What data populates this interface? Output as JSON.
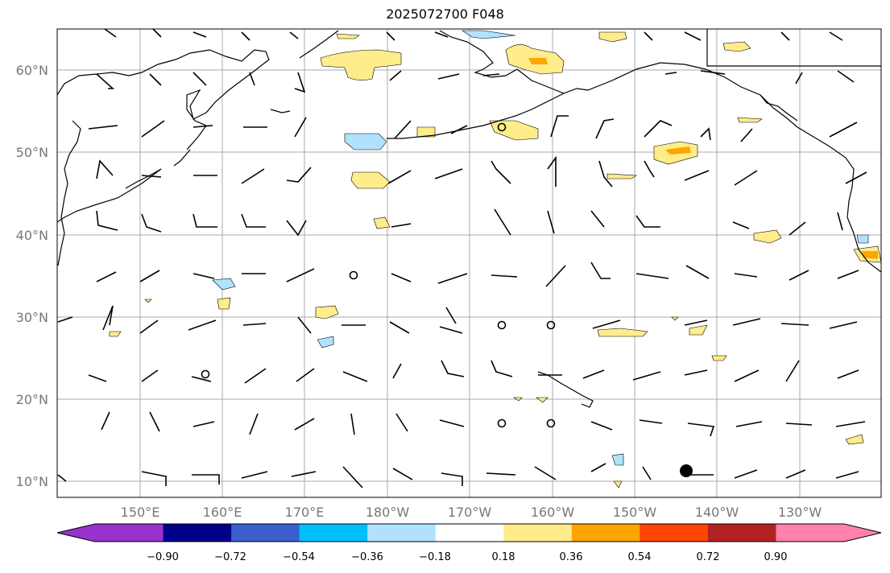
{
  "title": "2025072700 F048",
  "map": {
    "lat_labels": [
      "60°N",
      "50°N",
      "40°N",
      "30°N",
      "20°N",
      "10°N"
    ],
    "lon_labels": [
      "150°E",
      "160°E",
      "170°E",
      "180°W",
      "170°W",
      "160°W",
      "150°W",
      "140°W",
      "130°W"
    ]
  },
  "colorbar": {
    "colors": [
      "#9932cc",
      "#00008b",
      "#3a5fcd",
      "#00bfff",
      "#b0e2ff",
      "#ffffff",
      "#ffec8b",
      "#ffa500",
      "#ff4500",
      "#b22222",
      "#ff82ab"
    ],
    "tick_labels": [
      "−0.90",
      "−0.72",
      "−0.54",
      "−0.36",
      "−0.18",
      "0.18",
      "0.36",
      "0.54",
      "0.72",
      "0.90"
    ]
  },
  "colors": {
    "coast": "#000000",
    "grid": "#aaaaaa",
    "axis_label": "#777777"
  }
}
